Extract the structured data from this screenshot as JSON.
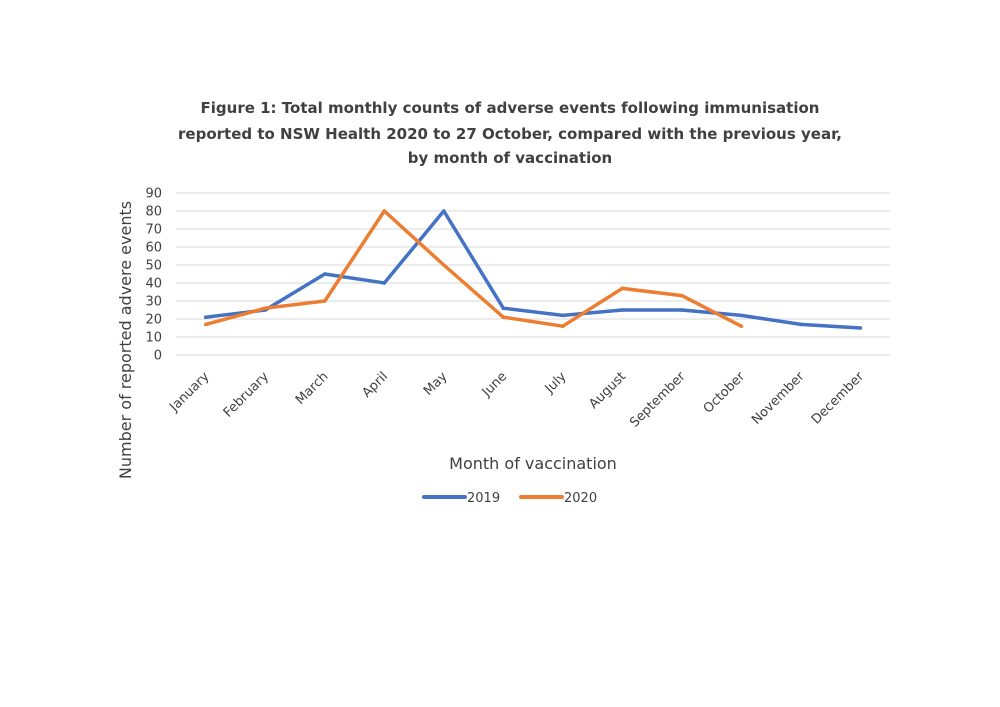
{
  "chart_data": {
    "type": "line",
    "title_lines": [
      "Figure 1: Total monthly counts of adverse events following immunisation",
      "reported to NSW Health 2020 to 27 October, compared with the previous year,",
      "by month of vaccination"
    ],
    "xlabel": "Month of vaccination",
    "ylabel": "Number of reported advere events",
    "ylim": [
      0,
      90
    ],
    "yticks": [
      0,
      10,
      20,
      30,
      40,
      50,
      60,
      70,
      80,
      90
    ],
    "categories": [
      "January",
      "February",
      "March",
      "April",
      "May",
      "June",
      "July",
      "August",
      "September",
      "October",
      "November",
      "December"
    ],
    "grid": true,
    "legend_position": "bottom",
    "series": [
      {
        "name": "2019",
        "color": "#4472c4",
        "values": [
          21,
          25,
          45,
          40,
          80,
          26,
          22,
          25,
          25,
          22,
          17,
          15
        ]
      },
      {
        "name": "2020",
        "color": "#ed7d31",
        "values": [
          17,
          26,
          30,
          80,
          50,
          21,
          16,
          37,
          33,
          16,
          null,
          null
        ]
      }
    ]
  }
}
